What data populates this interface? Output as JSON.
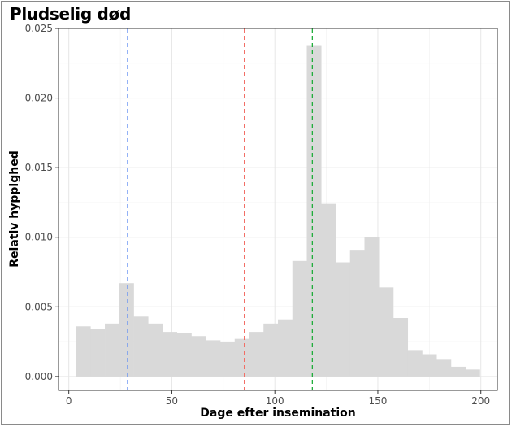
{
  "chart_data": {
    "type": "bar",
    "title": "Pludselig død",
    "xlabel": "Dage efter insemination",
    "ylabel": "Relativ hyppighed",
    "xlim": [
      -5,
      208
    ],
    "ylim": [
      -0.001,
      0.025
    ],
    "x_ticks": [
      0,
      50,
      100,
      150,
      200
    ],
    "x_tick_labels": [
      "0",
      "50",
      "100",
      "150",
      "200"
    ],
    "y_ticks": [
      0.0,
      0.005,
      0.01,
      0.015,
      0.02,
      0.025
    ],
    "y_tick_labels": [
      "0.000",
      "0.005",
      "0.010",
      "0.015",
      "0.020",
      "0.025"
    ],
    "bin_width": 7,
    "bin_starts": [
      3.5,
      10.5,
      17.5,
      24.5,
      31.5,
      38.5,
      45.5,
      52.5,
      59.5,
      66.5,
      73.5,
      80.5,
      87.5,
      94.5,
      101.5,
      108.5,
      115.5,
      122.5,
      129.5,
      136.5,
      143.5,
      150.5,
      157.5,
      164.5,
      171.5,
      178.5,
      185.5,
      192.5
    ],
    "values": [
      0.0036,
      0.0034,
      0.0038,
      0.0067,
      0.0043,
      0.0038,
      0.0032,
      0.0031,
      0.0029,
      0.0026,
      0.0025,
      0.0027,
      0.0032,
      0.0038,
      0.0041,
      0.0083,
      0.0238,
      0.0124,
      0.0082,
      0.0091,
      0.01,
      0.0064,
      0.0042,
      0.0019,
      0.0016,
      0.0012,
      0.0007,
      0.0005
    ],
    "bar_color": "#d9d9d9",
    "vlines": [
      {
        "x": 28.5,
        "color": "#6b95f2",
        "style": "dashed"
      },
      {
        "x": 85.2,
        "color": "#f26b62",
        "style": "dashed"
      },
      {
        "x": 118.2,
        "color": "#1fad3a",
        "style": "dashed"
      }
    ],
    "grid": true
  }
}
